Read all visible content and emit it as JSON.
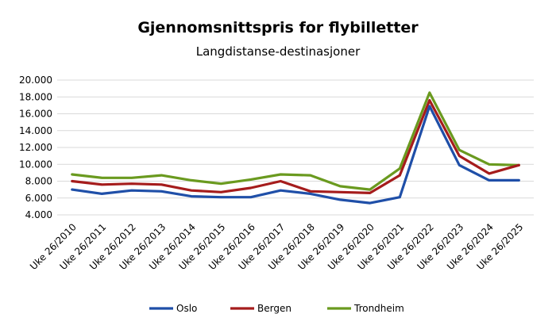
{
  "chart_data": {
    "type": "line",
    "title": "Gjennomsnittspris for flybilletter",
    "subtitle": "Langdistanse-destinasjoner",
    "xlabel": "",
    "ylabel": "",
    "categories": [
      "Uke 26/2010",
      "Uke 26/2011",
      "Uke 26/2012",
      "Uke 26/2013",
      "Uke 26/2014",
      "Uke 26/2015",
      "Uke 26/2016",
      "Uke 26/2017",
      "Uke 26/2018",
      "Uke 26/2019",
      "Uke 26/2020",
      "Uke 26/2021",
      "Uke 26/2022",
      "Uke 26/2023",
      "Uke 26/2024",
      "Uke 26/2025"
    ],
    "ylim": [
      4000,
      20000
    ],
    "yticks": [
      4000,
      6000,
      8000,
      10000,
      12000,
      14000,
      16000,
      18000,
      20000
    ],
    "ytick_labels": [
      "4.000",
      "6.000",
      "8.000",
      "10.000",
      "12.000",
      "14.000",
      "16.000",
      "18.000",
      "20.000"
    ],
    "grid": true,
    "legend_position": "bottom",
    "series": [
      {
        "name": "Oslo",
        "color": "#1f4fa8",
        "values": [
          7000,
          6500,
          6900,
          6800,
          6200,
          6100,
          6100,
          6900,
          6500,
          5800,
          5400,
          6100,
          16900,
          9900,
          8100,
          8100
        ]
      },
      {
        "name": "Bergen",
        "color": "#a51c1c",
        "values": [
          8000,
          7600,
          7700,
          7600,
          6900,
          6700,
          7200,
          8000,
          6800,
          6700,
          6600,
          8700,
          17600,
          11000,
          8900,
          9900
        ]
      },
      {
        "name": "Trondheim",
        "color": "#6a9a1f",
        "values": [
          8800,
          8400,
          8400,
          8700,
          8100,
          7700,
          8200,
          8800,
          8700,
          7400,
          7000,
          9500,
          18500,
          11700,
          10000,
          9900
        ]
      }
    ]
  }
}
